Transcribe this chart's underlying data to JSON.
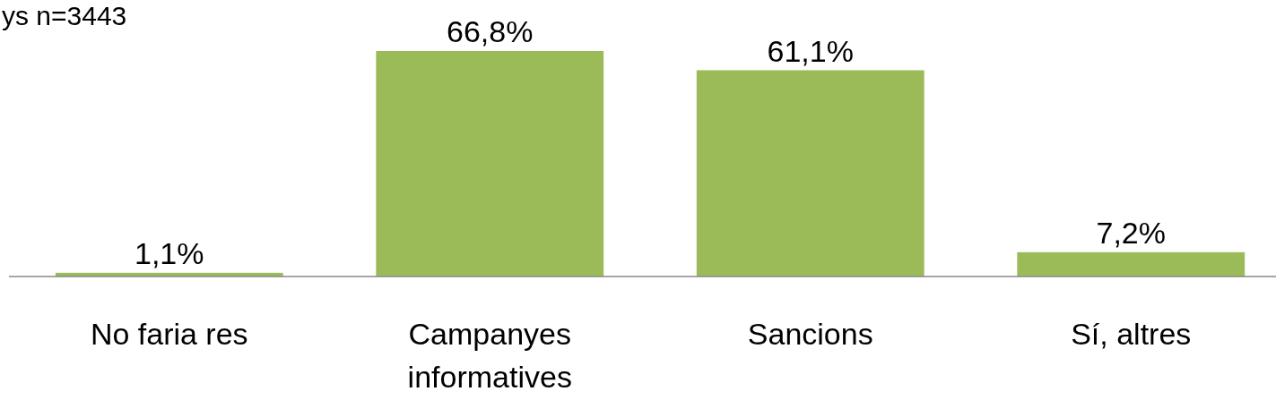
{
  "chart_data": {
    "type": "bar",
    "annotations": [
      "ys n=3443"
    ],
    "categories": [
      "No faria res",
      "Campanyes informatives",
      "Sancions",
      "Sí, altres"
    ],
    "values": [
      1.1,
      66.8,
      61.1,
      7.2
    ],
    "color": "#9bbb59",
    "value_labels": [
      "1,1%",
      "66,8%",
      "61,1%",
      "7,2%"
    ]
  }
}
